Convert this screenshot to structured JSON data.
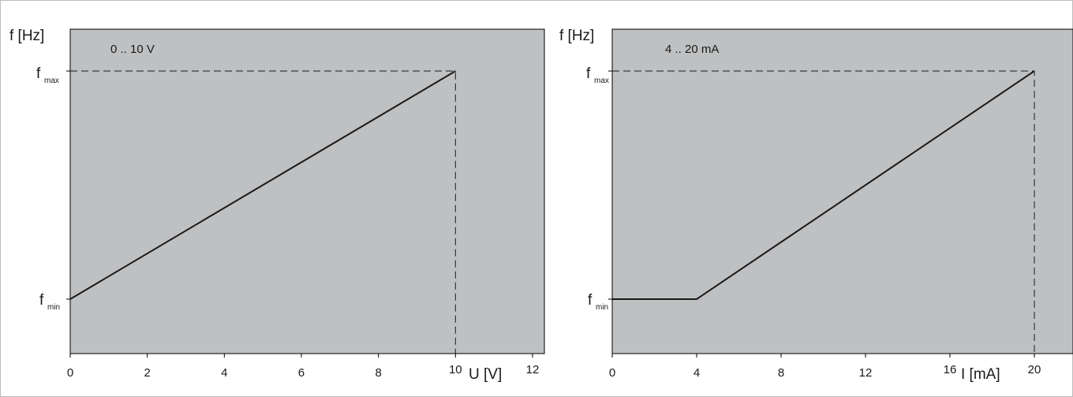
{
  "chart_data": [
    {
      "type": "line",
      "title": "0 .. 10 V",
      "xlabel": "U [V]",
      "ylabel": "f [Hz]",
      "xlim": [
        0,
        12
      ],
      "x_ticks": [
        "0",
        "2",
        "4",
        "6",
        "8",
        "10",
        "12"
      ],
      "y_ticks": [
        {
          "base": "f",
          "sub": "max"
        },
        {
          "base": "f",
          "sub": "min"
        }
      ],
      "series": [
        {
          "x": [
            0,
            10
          ],
          "y": [
            "fmin",
            "fmax"
          ]
        }
      ],
      "guides": {
        "x": 10,
        "y": "fmax",
        "style": "dashed"
      },
      "grid": false
    },
    {
      "type": "line",
      "title": "4 .. 20 mA",
      "xlabel": "I [mA]",
      "ylabel": "f [Hz]",
      "xlim": [
        0,
        20
      ],
      "x_ticks": [
        "0",
        "4",
        "8",
        "12",
        "16",
        "20"
      ],
      "y_ticks": [
        {
          "base": "f",
          "sub": "max"
        },
        {
          "base": "f",
          "sub": "min"
        }
      ],
      "series": [
        {
          "x": [
            0,
            4,
            20
          ],
          "y": [
            "fmin",
            "fmin",
            "fmax"
          ]
        }
      ],
      "guides": {
        "x": 20,
        "y": "fmax",
        "style": "dashed"
      },
      "grid": false
    }
  ]
}
